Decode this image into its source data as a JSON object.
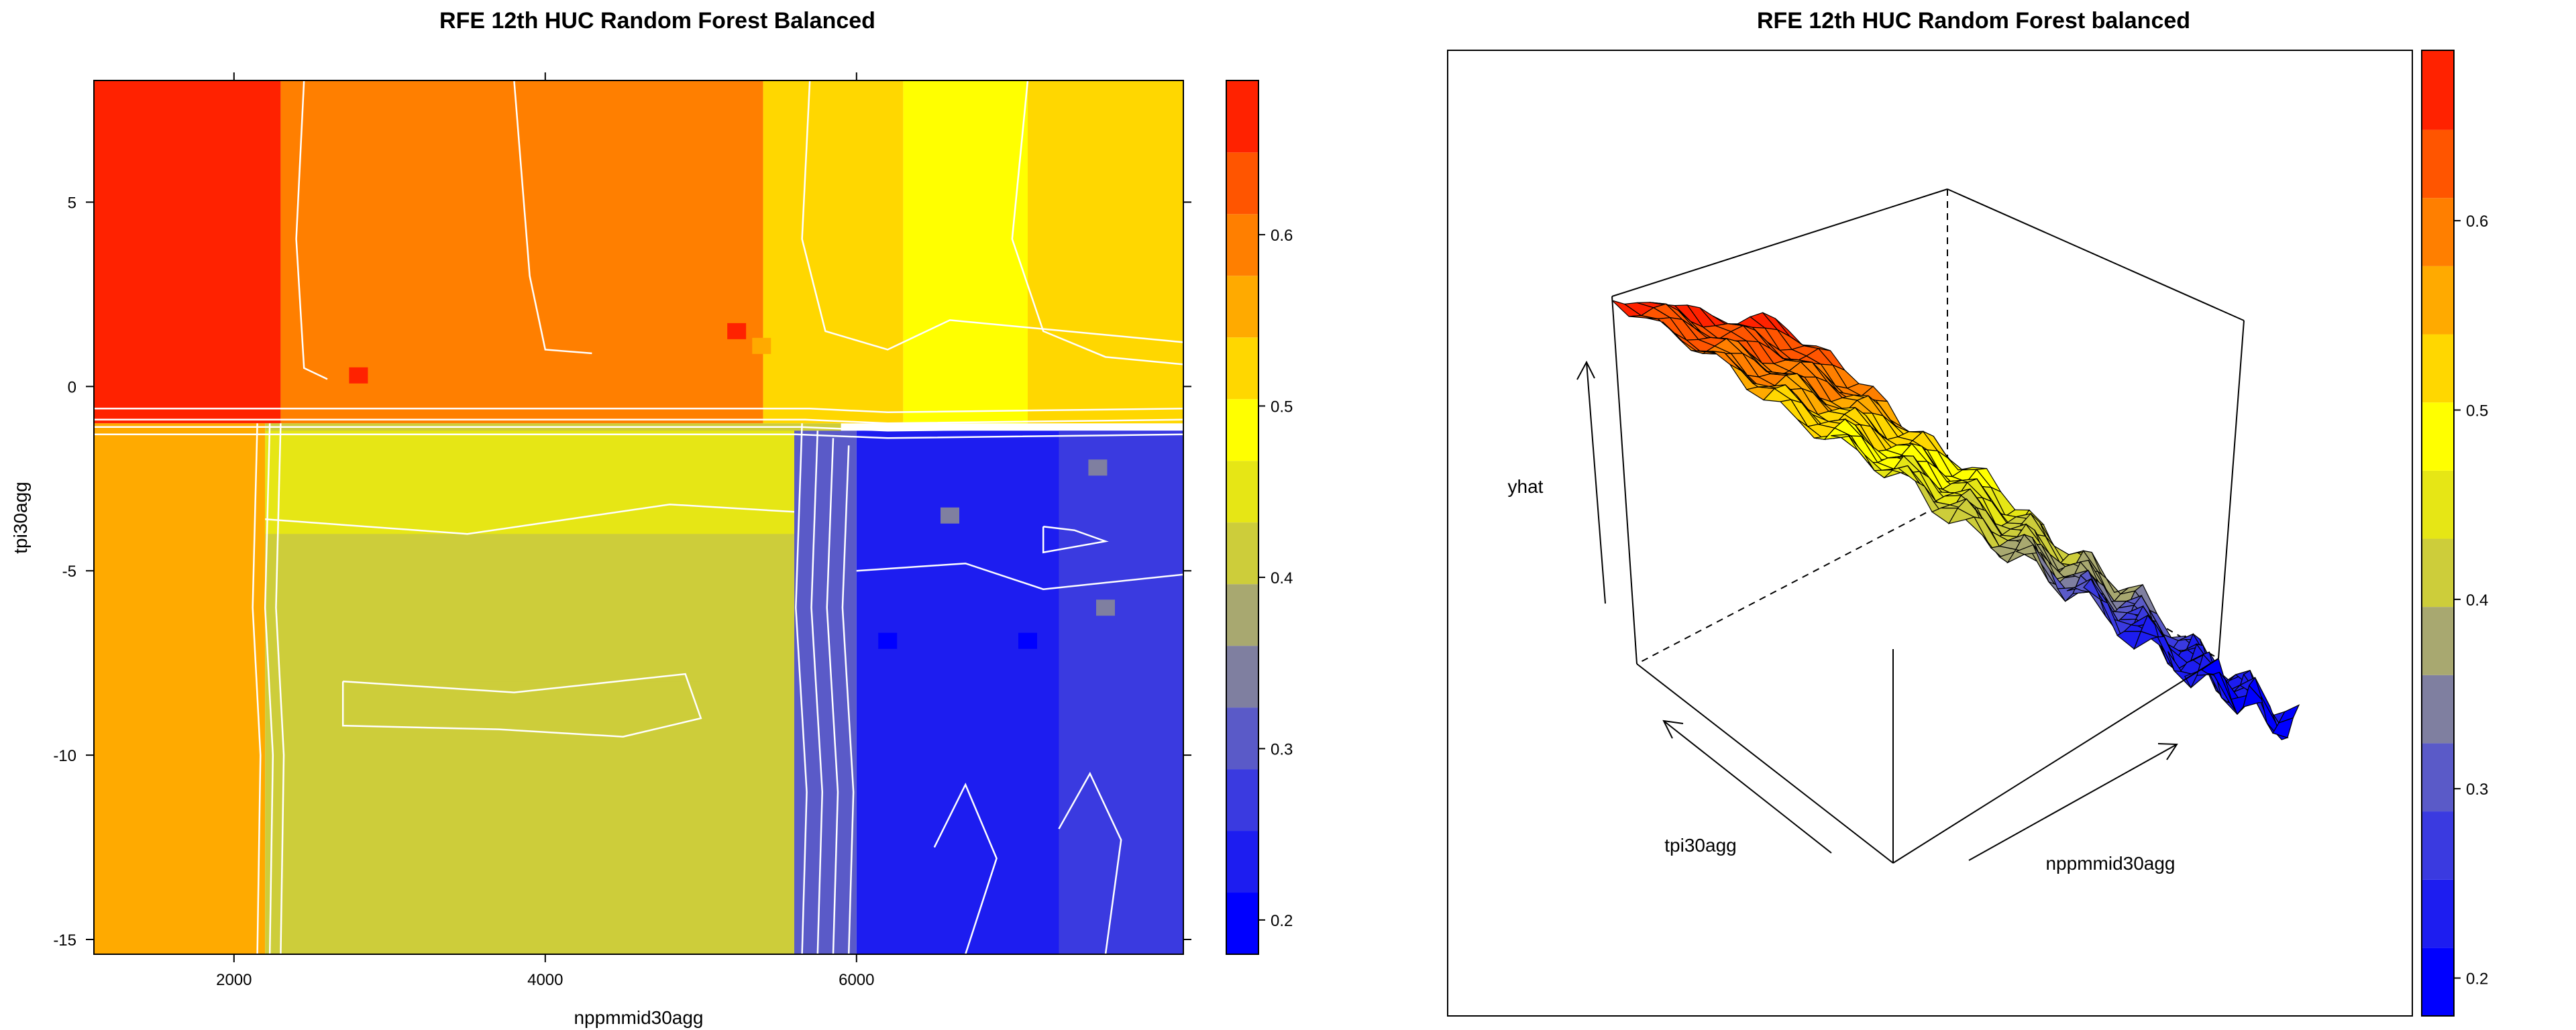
{
  "chart_data": [
    {
      "type": "heatmap",
      "title": "RFE 12th HUC Random Forest Balanced",
      "xlabel": "nppmmid30agg",
      "ylabel": "tpi30agg",
      "x_ticks": [
        "2000",
        "4000",
        "6000"
      ],
      "x_tick_values": [
        2000,
        4000,
        6000
      ],
      "y_ticks": [
        "5",
        "0",
        "-5",
        "-10",
        "-15"
      ],
      "y_tick_values": [
        5,
        0,
        -5,
        -10,
        -15
      ],
      "xlim": [
        1100,
        8100
      ],
      "ylim": [
        -15.4,
        8.3
      ],
      "contours": true,
      "grid": false,
      "colorkey": {
        "labels": [
          "0.6",
          "0.5",
          "0.4",
          "0.3",
          "0.2"
        ],
        "values": [
          0.6,
          0.5,
          0.4,
          0.3,
          0.2
        ],
        "range": [
          0.18,
          0.69
        ],
        "levels": [
          {
            "from": 0.18,
            "to": 0.216,
            "color": "#0000ff"
          },
          {
            "from": 0.216,
            "to": 0.252,
            "color": "#1d1df0"
          },
          {
            "from": 0.252,
            "to": 0.288,
            "color": "#3a3ae0"
          },
          {
            "from": 0.288,
            "to": 0.324,
            "color": "#5a5ac8"
          },
          {
            "from": 0.324,
            "to": 0.36,
            "color": "#7f7fa0"
          },
          {
            "from": 0.36,
            "to": 0.396,
            "color": "#a8a870"
          },
          {
            "from": 0.396,
            "to": 0.432,
            "color": "#cdcd3a"
          },
          {
            "from": 0.432,
            "to": 0.468,
            "color": "#e6e615"
          },
          {
            "from": 0.468,
            "to": 0.504,
            "color": "#ffff00"
          },
          {
            "from": 0.504,
            "to": 0.54,
            "color": "#ffd700"
          },
          {
            "from": 0.54,
            "to": 0.576,
            "color": "#ffaa00"
          },
          {
            "from": 0.576,
            "to": 0.612,
            "color": "#ff7f00"
          },
          {
            "from": 0.612,
            "to": 0.648,
            "color": "#ff5500"
          },
          {
            "from": 0.648,
            "to": 0.69,
            "color": "#ff2200"
          }
        ]
      },
      "regions": [
        {
          "x": [
            1100,
            2300
          ],
          "y": [
            -1,
            8.3
          ],
          "value": 0.66
        },
        {
          "x": [
            2300,
            5400
          ],
          "y": [
            -1,
            8.3
          ],
          "value": 0.6
        },
        {
          "x": [
            5400,
            6300
          ],
          "y": [
            -1,
            8.3
          ],
          "value": 0.52
        },
        {
          "x": [
            6300,
            7100
          ],
          "y": [
            -1,
            8.3
          ],
          "value": 0.48
        },
        {
          "x": [
            7100,
            8100
          ],
          "y": [
            -1,
            8.3
          ],
          "value": 0.52
        },
        {
          "x": [
            1100,
            2200
          ],
          "y": [
            -15.4,
            -1
          ],
          "value": 0.56
        },
        {
          "x": [
            2200,
            5900
          ],
          "y": [
            -15.4,
            -1
          ],
          "value": 0.43
        },
        {
          "x": [
            2700,
            5000
          ],
          "y": [
            -8,
            -5.5
          ],
          "value": 0.4
        },
        {
          "x": [
            3700,
            4900
          ],
          "y": [
            -15.4,
            -9.5
          ],
          "value": 0.4
        },
        {
          "x": [
            2200,
            5900
          ],
          "y": [
            -4,
            -1.2
          ],
          "value": 0.46
        },
        {
          "x": [
            5600,
            6000
          ],
          "y": [
            -15.4,
            -1.2
          ],
          "value": 0.32
        },
        {
          "x": [
            6000,
            8100
          ],
          "y": [
            -15.4,
            -1.2
          ],
          "value": 0.24
        },
        {
          "x": [
            7300,
            8100
          ],
          "y": [
            -15.4,
            -1.2
          ],
          "value": 0.28
        }
      ]
    },
    {
      "type": "surface",
      "title": "RFE 12th HUC Random Forest balanced",
      "xlabel": "nppmmid30agg",
      "ylabel": "tpi30agg",
      "zlabel": "yhat",
      "colorkey": {
        "labels": [
          "0.6",
          "0.5",
          "0.4",
          "0.3",
          "0.2"
        ],
        "values": [
          0.6,
          0.5,
          0.4,
          0.3,
          0.2
        ],
        "range": [
          0.18,
          0.69
        ]
      }
    }
  ]
}
